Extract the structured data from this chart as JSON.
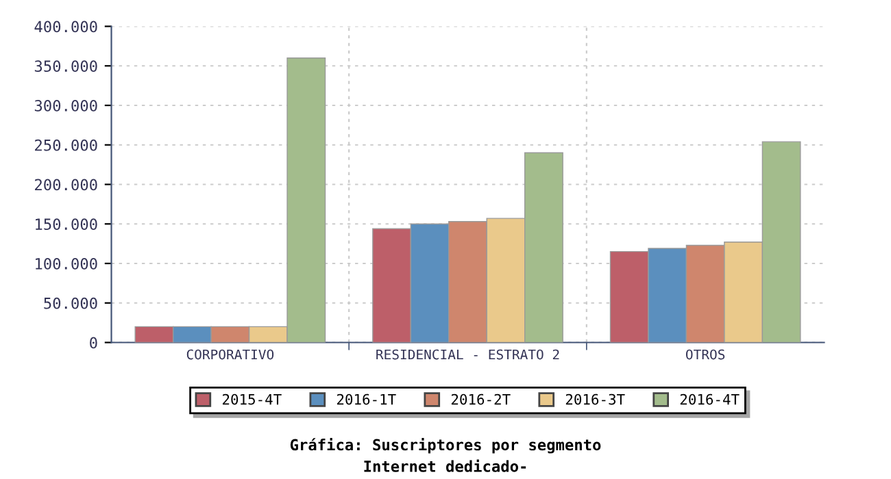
{
  "chart_data": {
    "type": "bar",
    "title": "Gráfica: Suscriptores por segmento",
    "subtitle": "Internet dedicado-",
    "categories": [
      "CORPORATIVO",
      "RESIDENCIAL - ESTRATO 2",
      "OTROS"
    ],
    "series": [
      {
        "name": "2015-4T",
        "color": "#bd5f69",
        "values": [
          20000,
          144000,
          115000
        ]
      },
      {
        "name": "2016-1T",
        "color": "#5b8fbe",
        "values": [
          20000,
          150000,
          119000
        ]
      },
      {
        "name": "2016-2T",
        "color": "#cf866d",
        "values": [
          20000,
          153000,
          123000
        ]
      },
      {
        "name": "2016-3T",
        "color": "#eac98b",
        "values": [
          20000,
          157000,
          127000
        ]
      },
      {
        "name": "2016-4T",
        "color": "#a3bc8c",
        "values": [
          360000,
          240000,
          254000
        ]
      }
    ],
    "ylim": [
      0,
      400000
    ],
    "yticks": [
      {
        "value": 0,
        "label": "0"
      },
      {
        "value": 50000,
        "label": "50.000"
      },
      {
        "value": 100000,
        "label": "100.000"
      },
      {
        "value": 150000,
        "label": "150.000"
      },
      {
        "value": 200000,
        "label": "200.000"
      },
      {
        "value": 250000,
        "label": "250.000"
      },
      {
        "value": 300000,
        "label": "300.000"
      },
      {
        "value": 350000,
        "label": "350.000"
      },
      {
        "value": 400000,
        "label": "400.000"
      }
    ],
    "grid": true,
    "legend": "bottom"
  }
}
